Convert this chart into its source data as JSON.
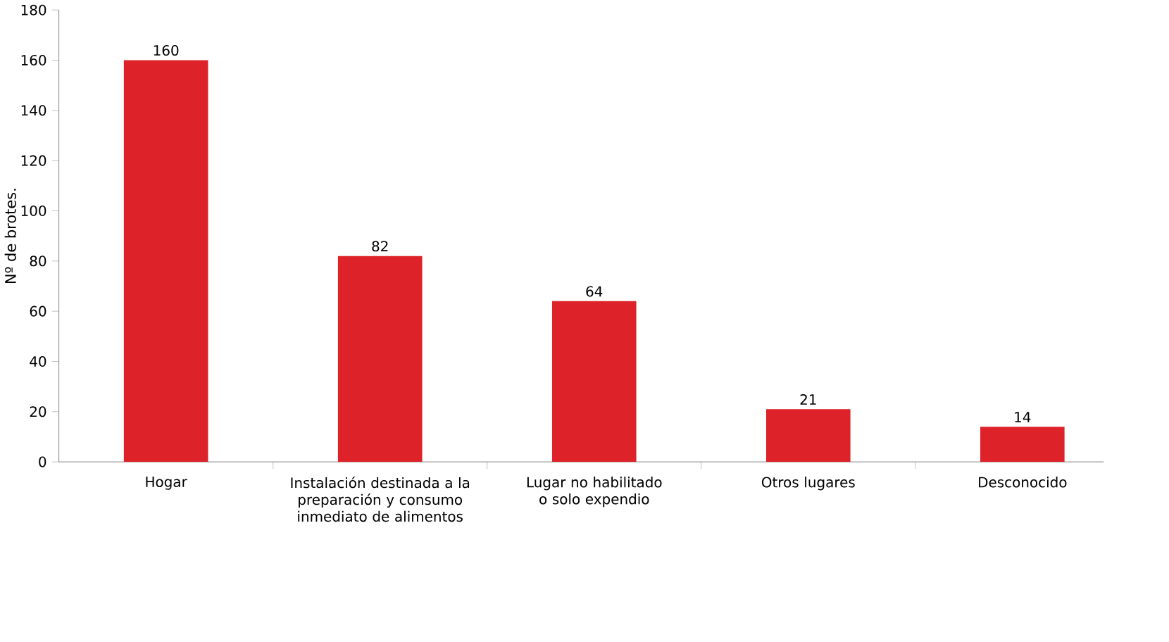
{
  "chart_data": {
    "type": "bar",
    "ylabel": "Nº de brotes.",
    "categories": [
      "Hogar",
      "Instalación destinada a la preparación y consumo inmediato de alimentos",
      "Lugar no habilitado o solo expendio",
      "Otros lugares",
      "Desconocido"
    ],
    "values": [
      160,
      82,
      64,
      21,
      14
    ],
    "color": "#dd2229",
    "ylim": [
      0,
      180
    ],
    "yticks": [
      0,
      20,
      40,
      60,
      80,
      100,
      120,
      140,
      160,
      180
    ],
    "data_labels": true
  }
}
